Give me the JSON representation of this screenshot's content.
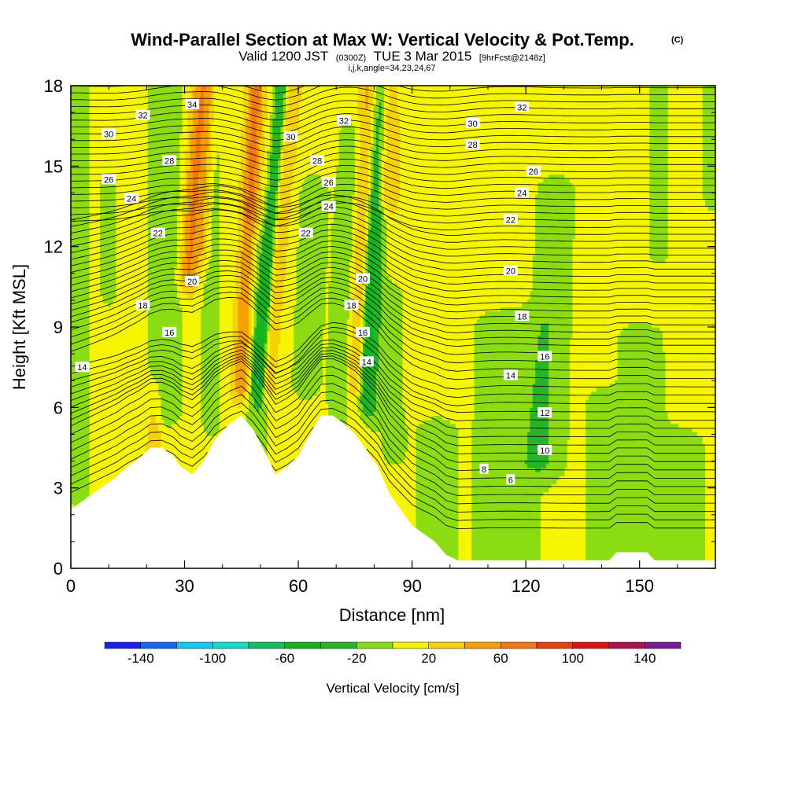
{
  "title": {
    "main": "Wind-Parallel Section at Max W: Vertical Velocity & Pot.Temp.",
    "copyright": "(C)",
    "valid_prefix": "Valid 1200 JST",
    "valid_utc": "(0300Z)",
    "valid_date": "TUE 3 Mar 2015",
    "forecast": "[9hrFcst@2148z]",
    "params": "i,j,k,angle=34,23,24,67"
  },
  "chart_data": {
    "type": "heatmap",
    "xlabel": "Distance [nm]",
    "ylabel": "Height [Kft MSL]",
    "xlim": [
      0,
      170
    ],
    "ylim": [
      0,
      18
    ],
    "x_ticks": [
      "0",
      "30",
      "60",
      "90",
      "120",
      "150"
    ],
    "y_ticks": [
      "0",
      "3",
      "6",
      "9",
      "12",
      "15",
      "18"
    ],
    "colorbar": {
      "label": "Vertical Velocity [cm/s]",
      "tick_labels": [
        "-140",
        "-100",
        "-60",
        "-20",
        "20",
        "60",
        "100",
        "140"
      ],
      "tick_values": [
        -140,
        -100,
        -60,
        -20,
        20,
        60,
        100,
        140
      ],
      "bounds": [
        -160,
        -140,
        -120,
        -100,
        -80,
        -60,
        -40,
        -20,
        0,
        20,
        40,
        60,
        80,
        100,
        120,
        140,
        160
      ],
      "colors": [
        "#1e1ef0",
        "#1464f0",
        "#10c8f0",
        "#10e0c8",
        "#10c064",
        "#14b41e",
        "#28b428",
        "#8cdc14",
        "#f5f500",
        "#f5d200",
        "#f5a000",
        "#f57814",
        "#eb3c14",
        "#dc1414",
        "#aa1450",
        "#781e96"
      ]
    },
    "terrain": [
      [
        0,
        2.2
      ],
      [
        3,
        2.5
      ],
      [
        6,
        2.8
      ],
      [
        9,
        3.1
      ],
      [
        12,
        3.4
      ],
      [
        15,
        3.8
      ],
      [
        18,
        4.1
      ],
      [
        21,
        4.5
      ],
      [
        24,
        4.5
      ],
      [
        27,
        4.2
      ],
      [
        29,
        3.8
      ],
      [
        32,
        3.5
      ],
      [
        35,
        4.0
      ],
      [
        38,
        4.8
      ],
      [
        42,
        5.4
      ],
      [
        45,
        5.7
      ],
      [
        48,
        5.2
      ],
      [
        51,
        4.4
      ],
      [
        54,
        3.5
      ],
      [
        57,
        3.8
      ],
      [
        60,
        4.2
      ],
      [
        63,
        5.0
      ],
      [
        66,
        5.7
      ],
      [
        69,
        5.7
      ],
      [
        72,
        5.4
      ],
      [
        75,
        5.0
      ],
      [
        78,
        4.4
      ],
      [
        81,
        3.8
      ],
      [
        84,
        2.8
      ],
      [
        87,
        2.2
      ],
      [
        90,
        1.6
      ],
      [
        93,
        1.3
      ],
      [
        96,
        1.0
      ],
      [
        99,
        0.5
      ],
      [
        102,
        0.3
      ],
      [
        142,
        0.3
      ],
      [
        144,
        0.6
      ],
      [
        152,
        0.6
      ],
      [
        154,
        0.3
      ],
      [
        170,
        0.3
      ]
    ],
    "velocity_features": [
      {
        "x": 2,
        "xw": 3,
        "y0": 3.0,
        "y1": 18,
        "xr": 0,
        "w": -30
      },
      {
        "x": 25,
        "xw": 5,
        "y0": 6.0,
        "y1": 18,
        "xr": 0,
        "w": -28
      },
      {
        "x": 10,
        "xw": 2.5,
        "y0": 10.5,
        "y1": 14,
        "xr": 0,
        "w": -25
      },
      {
        "x": 37,
        "xw": 3,
        "y0": 5.5,
        "y1": 18,
        "xr": 0,
        "w": -22
      },
      {
        "x": 31,
        "xw": 2.6,
        "y0": 11,
        "y1": 18,
        "xr": 0.5,
        "w": 55
      },
      {
        "x": 35,
        "xw": 1.8,
        "y0": 12,
        "y1": 18,
        "xr": 0.3,
        "w": 30
      },
      {
        "x": 45,
        "xw": 2.3,
        "y0": 7.0,
        "y1": 18,
        "xr": 0.35,
        "w": 55
      },
      {
        "x": 49.5,
        "xw": 1.8,
        "y0": 7.0,
        "y1": 18,
        "xr": 0.55,
        "w": -55
      },
      {
        "x": 52,
        "xw": 2.0,
        "y0": 7.0,
        "y1": 18,
        "xr": 0.6,
        "w": 30
      },
      {
        "x": 49,
        "xw": 3.5,
        "y0": 4.5,
        "y1": 12,
        "xr": 0,
        "w": -25
      },
      {
        "x": 62,
        "xw": 4,
        "y0": 7.0,
        "y1": 14,
        "xr": 0.3,
        "w": -28
      },
      {
        "x": 70,
        "xw": 3,
        "y0": 4.5,
        "y1": 16,
        "xr": 0.3,
        "w": -28
      },
      {
        "x": 75,
        "xw": 2.2,
        "y0": 7.0,
        "y1": 18,
        "xr": 0.3,
        "w": 30
      },
      {
        "x": 77.5,
        "xw": 1.8,
        "y0": 6.5,
        "y1": 18,
        "xr": 0.35,
        "w": -48
      },
      {
        "x": 79.5,
        "xw": 2.3,
        "y0": 6.0,
        "y1": 18,
        "xr": 0.3,
        "w": -28
      },
      {
        "x": 81.5,
        "xw": 2.0,
        "y0": 14,
        "y1": 18,
        "xr": 0,
        "w": 22
      },
      {
        "x": 84,
        "xw": 2.2,
        "y0": 14,
        "y1": 18,
        "xr": 0,
        "w": 35
      },
      {
        "x": 85,
        "xw": 3.5,
        "y0": 4.5,
        "y1": 10,
        "xr": 0,
        "w": -22
      },
      {
        "x": 96,
        "xw": 6,
        "y0": 0.3,
        "y1": 5.0,
        "xr": 0,
        "w": -22
      },
      {
        "x": 115,
        "xw": 10,
        "y0": 0.3,
        "y1": 9.0,
        "xr": 0,
        "w": -25
      },
      {
        "x": 125,
        "xw": 6,
        "y0": 4.0,
        "y1": 14,
        "xr": 0.3,
        "w": -25
      },
      {
        "x": 140,
        "xw": 5,
        "y0": 0.3,
        "y1": 6.0,
        "xr": 0,
        "w": -22
      },
      {
        "x": 152,
        "xw": 7,
        "y0": 0.3,
        "y1": 8.5,
        "xr": -0.2,
        "w": -25
      },
      {
        "x": 162,
        "xw": 6,
        "y0": 0.3,
        "y1": 4.5,
        "xr": 0,
        "w": -25
      },
      {
        "x": 155,
        "xw": 3.5,
        "y0": 12,
        "y1": 18,
        "xr": 0,
        "w": -22
      },
      {
        "x": 169,
        "xw": 2.5,
        "y0": 14,
        "y1": 18,
        "xr": 0,
        "w": -25
      },
      {
        "x": 22,
        "xw": 2,
        "y0": 4.5,
        "y1": 6.2,
        "xr": 0,
        "w": 25
      }
    ],
    "theta_labels": [
      {
        "t": "34",
        "x": 32,
        "y": 17.3
      },
      {
        "t": "32",
        "x": 19,
        "y": 16.9
      },
      {
        "t": "30",
        "x": 10,
        "y": 16.2
      },
      {
        "t": "28",
        "x": 26,
        "y": 15.2
      },
      {
        "t": "26",
        "x": 10,
        "y": 14.5
      },
      {
        "t": "24",
        "x": 16,
        "y": 13.8
      },
      {
        "t": "22",
        "x": 23,
        "y": 12.5
      },
      {
        "t": "20",
        "x": 32,
        "y": 10.7
      },
      {
        "t": "18",
        "x": 19,
        "y": 9.8
      },
      {
        "t": "16",
        "x": 26,
        "y": 8.8
      },
      {
        "t": "14",
        "x": 3,
        "y": 7.5
      },
      {
        "t": "32",
        "x": 72,
        "y": 16.7
      },
      {
        "t": "30",
        "x": 58,
        "y": 16.1
      },
      {
        "t": "28",
        "x": 65,
        "y": 15.2
      },
      {
        "t": "26",
        "x": 68,
        "y": 14.4
      },
      {
        "t": "24",
        "x": 68,
        "y": 13.5
      },
      {
        "t": "22",
        "x": 62,
        "y": 12.5
      },
      {
        "t": "20",
        "x": 77,
        "y": 10.8
      },
      {
        "t": "18",
        "x": 74,
        "y": 9.8
      },
      {
        "t": "16",
        "x": 77,
        "y": 8.8
      },
      {
        "t": "14",
        "x": 78,
        "y": 7.7
      },
      {
        "t": "32",
        "x": 119,
        "y": 17.2
      },
      {
        "t": "30",
        "x": 106,
        "y": 16.6
      },
      {
        "t": "28",
        "x": 106,
        "y": 15.8
      },
      {
        "t": "26",
        "x": 122,
        "y": 14.8
      },
      {
        "t": "24",
        "x": 119,
        "y": 14.0
      },
      {
        "t": "22",
        "x": 116,
        "y": 13.0
      },
      {
        "t": "20",
        "x": 116,
        "y": 11.1
      },
      {
        "t": "18",
        "x": 119,
        "y": 9.4
      },
      {
        "t": "16",
        "x": 125,
        "y": 7.9
      },
      {
        "t": "14",
        "x": 116,
        "y": 7.2
      },
      {
        "t": "12",
        "x": 125,
        "y": 5.8
      },
      {
        "t": "10",
        "x": 125,
        "y": 4.4
      },
      {
        "t": "8",
        "x": 109,
        "y": 3.7
      },
      {
        "t": "6",
        "x": 116,
        "y": 3.3
      }
    ]
  }
}
